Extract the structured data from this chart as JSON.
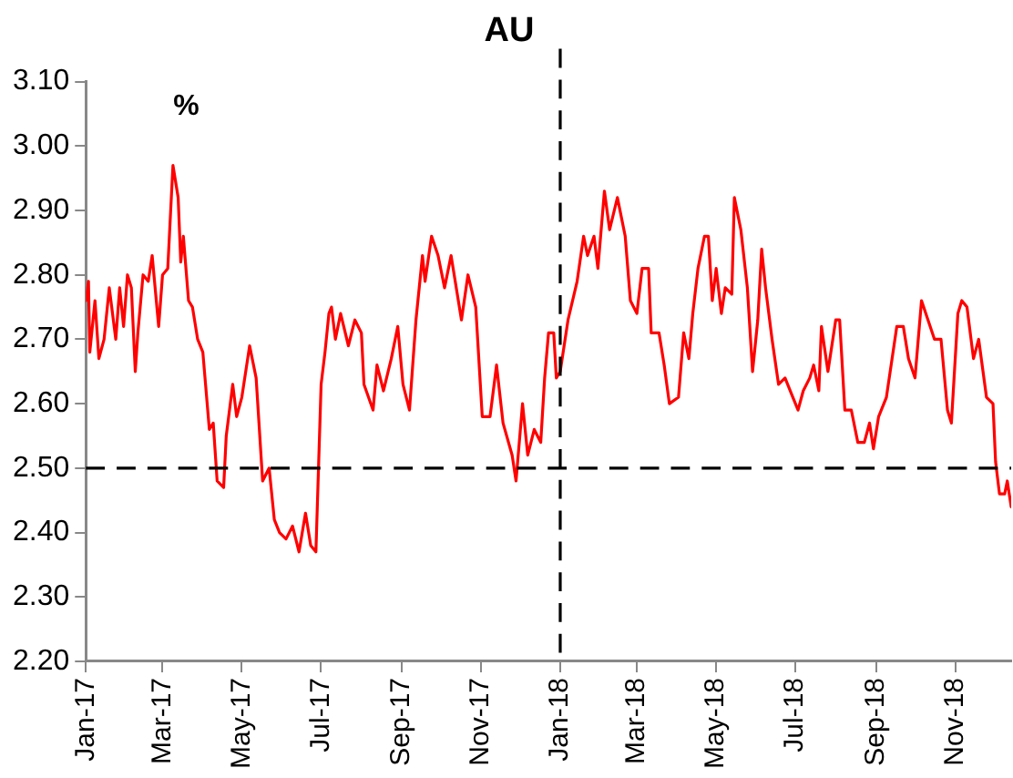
{
  "chart_data": {
    "type": "line",
    "title": "AU",
    "annotations": [
      "%"
    ],
    "x": [
      "2017-01-01",
      "2017-01-03",
      "2017-01-04",
      "2017-01-08",
      "2017-01-11",
      "2017-01-15",
      "2017-01-19",
      "2017-01-24",
      "2017-01-27",
      "2017-01-30",
      "2017-02-02",
      "2017-02-05",
      "2017-02-08",
      "2017-02-10",
      "2017-02-14",
      "2017-02-18",
      "2017-02-21",
      "2017-02-26",
      "2017-03-01",
      "2017-03-05",
      "2017-03-09",
      "2017-03-13",
      "2017-03-15",
      "2017-03-17",
      "2017-03-21",
      "2017-03-24",
      "2017-03-28",
      "2017-04-01",
      "2017-04-06",
      "2017-04-09",
      "2017-04-12",
      "2017-04-17",
      "2017-04-19",
      "2017-04-24",
      "2017-04-27",
      "2017-05-01",
      "2017-05-07",
      "2017-05-12",
      "2017-05-17",
      "2017-05-22",
      "2017-05-26",
      "2017-05-30",
      "2017-06-04",
      "2017-06-09",
      "2017-06-14",
      "2017-06-19",
      "2017-06-23",
      "2017-06-27",
      "2017-07-01",
      "2017-07-04",
      "2017-07-07",
      "2017-07-09",
      "2017-07-12",
      "2017-07-16",
      "2017-07-22",
      "2017-07-27",
      "2017-08-01",
      "2017-08-03",
      "2017-08-10",
      "2017-08-13",
      "2017-08-18",
      "2017-08-24",
      "2017-08-29",
      "2017-09-02",
      "2017-09-07",
      "2017-09-12",
      "2017-09-17",
      "2017-09-19",
      "2017-09-24",
      "2017-09-29",
      "2017-10-04",
      "2017-10-09",
      "2017-10-17",
      "2017-10-22",
      "2017-10-28",
      "2017-11-02",
      "2017-11-08",
      "2017-11-13",
      "2017-11-18",
      "2017-11-25",
      "2017-11-28",
      "2017-12-03",
      "2017-12-07",
      "2017-12-12",
      "2017-12-17",
      "2017-12-20",
      "2017-12-23",
      "2017-12-27",
      "2017-12-29",
      "2018-01-01",
      "2018-01-07",
      "2018-01-14",
      "2018-01-19",
      "2018-01-22",
      "2018-01-27",
      "2018-01-30",
      "2018-02-04",
      "2018-02-08",
      "2018-02-14",
      "2018-02-20",
      "2018-02-24",
      "2018-03-01",
      "2018-03-05",
      "2018-03-10",
      "2018-03-12",
      "2018-03-18",
      "2018-03-22",
      "2018-03-26",
      "2018-04-02",
      "2018-04-06",
      "2018-04-10",
      "2018-04-13",
      "2018-04-17",
      "2018-04-22",
      "2018-04-25",
      "2018-04-28",
      "2018-05-01",
      "2018-05-05",
      "2018-05-08",
      "2018-05-13",
      "2018-05-15",
      "2018-05-20",
      "2018-05-25",
      "2018-05-29",
      "2018-06-02",
      "2018-06-05",
      "2018-06-08",
      "2018-06-13",
      "2018-06-18",
      "2018-06-23",
      "2018-06-29",
      "2018-07-03",
      "2018-07-07",
      "2018-07-12",
      "2018-07-15",
      "2018-07-19",
      "2018-07-21",
      "2018-07-26",
      "2018-08-01",
      "2018-08-04",
      "2018-08-08",
      "2018-08-13",
      "2018-08-18",
      "2018-08-23",
      "2018-08-27",
      "2018-08-30",
      "2018-09-03",
      "2018-09-09",
      "2018-09-17",
      "2018-09-22",
      "2018-09-26",
      "2018-10-01",
      "2018-10-06",
      "2018-10-11",
      "2018-10-16",
      "2018-10-21",
      "2018-10-26",
      "2018-10-29",
      "2018-11-03",
      "2018-11-06",
      "2018-11-10",
      "2018-11-15",
      "2018-11-19",
      "2018-11-25",
      "2018-11-30",
      "2018-12-02",
      "2018-12-05",
      "2018-12-09",
      "2018-12-11",
      "2018-12-14"
    ],
    "series": [
      {
        "color": "#ff0000",
        "values": [
          2.76,
          2.79,
          2.68,
          2.76,
          2.67,
          2.7,
          2.78,
          2.7,
          2.78,
          2.72,
          2.8,
          2.78,
          2.65,
          2.71,
          2.8,
          2.79,
          2.83,
          2.72,
          2.8,
          2.81,
          2.97,
          2.92,
          2.82,
          2.86,
          2.76,
          2.75,
          2.7,
          2.68,
          2.56,
          2.57,
          2.48,
          2.47,
          2.55,
          2.63,
          2.58,
          2.61,
          2.69,
          2.64,
          2.48,
          2.5,
          2.42,
          2.4,
          2.39,
          2.41,
          2.37,
          2.43,
          2.38,
          2.37,
          2.63,
          2.68,
          2.74,
          2.75,
          2.7,
          2.74,
          2.69,
          2.73,
          2.71,
          2.63,
          2.59,
          2.66,
          2.62,
          2.67,
          2.72,
          2.63,
          2.59,
          2.73,
          2.83,
          2.79,
          2.86,
          2.83,
          2.78,
          2.83,
          2.73,
          2.8,
          2.75,
          2.58,
          2.58,
          2.66,
          2.57,
          2.52,
          2.48,
          2.6,
          2.52,
          2.56,
          2.54,
          2.64,
          2.71,
          2.71,
          2.64,
          2.65,
          2.73,
          2.79,
          2.86,
          2.83,
          2.86,
          2.81,
          2.93,
          2.87,
          2.92,
          2.86,
          2.76,
          2.74,
          2.81,
          2.81,
          2.71,
          2.71,
          2.66,
          2.6,
          2.61,
          2.71,
          2.67,
          2.74,
          2.81,
          2.86,
          2.86,
          2.76,
          2.81,
          2.74,
          2.78,
          2.77,
          2.92,
          2.87,
          2.78,
          2.65,
          2.73,
          2.84,
          2.78,
          2.7,
          2.63,
          2.64,
          2.61,
          2.59,
          2.62,
          2.64,
          2.66,
          2.62,
          2.72,
          2.65,
          2.73,
          2.73,
          2.59,
          2.59,
          2.54,
          2.54,
          2.57,
          2.53,
          2.58,
          2.61,
          2.72,
          2.72,
          2.67,
          2.64,
          2.76,
          2.73,
          2.7,
          2.7,
          2.59,
          2.57,
          2.74,
          2.76,
          2.75,
          2.67,
          2.7,
          2.61,
          2.6,
          2.51,
          2.46,
          2.46,
          2.48,
          2.44
        ]
      }
    ],
    "xlim": [
      "2017-01-01",
      "2018-12-14"
    ],
    "xticks": [
      {
        "value": "2017-01-01",
        "label": "Jan-17"
      },
      {
        "value": "2017-03-01",
        "label": "Mar-17"
      },
      {
        "value": "2017-05-01",
        "label": "May-17"
      },
      {
        "value": "2017-07-01",
        "label": "Jul-17"
      },
      {
        "value": "2017-09-01",
        "label": "Sep-17"
      },
      {
        "value": "2017-11-01",
        "label": "Nov-17"
      },
      {
        "value": "2018-01-01",
        "label": "Jan-18"
      },
      {
        "value": "2018-03-01",
        "label": "Mar-18"
      },
      {
        "value": "2018-05-01",
        "label": "May-18"
      },
      {
        "value": "2018-07-01",
        "label": "Jul-18"
      },
      {
        "value": "2018-09-01",
        "label": "Sep-18"
      },
      {
        "value": "2018-11-01",
        "label": "Nov-18"
      }
    ],
    "ylim": [
      2.2,
      3.1
    ],
    "yticks": [
      {
        "value": 2.2,
        "label": "2.20"
      },
      {
        "value": 2.3,
        "label": "2.30"
      },
      {
        "value": 2.4,
        "label": "2.40"
      },
      {
        "value": 2.5,
        "label": "2.50"
      },
      {
        "value": 2.6,
        "label": "2.60"
      },
      {
        "value": 2.7,
        "label": "2.70"
      },
      {
        "value": 2.8,
        "label": "2.80"
      },
      {
        "value": 2.9,
        "label": "2.90"
      },
      {
        "value": 3.0,
        "label": "3.00"
      },
      {
        "value": 3.1,
        "label": "3.10"
      }
    ],
    "ref_lines": [
      {
        "axis": "y",
        "value": 2.5,
        "color": "#000000",
        "line_style": "dashed"
      },
      {
        "axis": "x",
        "value": "2018-01-01",
        "color": "#000000",
        "line_style": "dashed"
      }
    ],
    "grid": false,
    "legend": false,
    "marker": "none",
    "line_style": "solid"
  }
}
